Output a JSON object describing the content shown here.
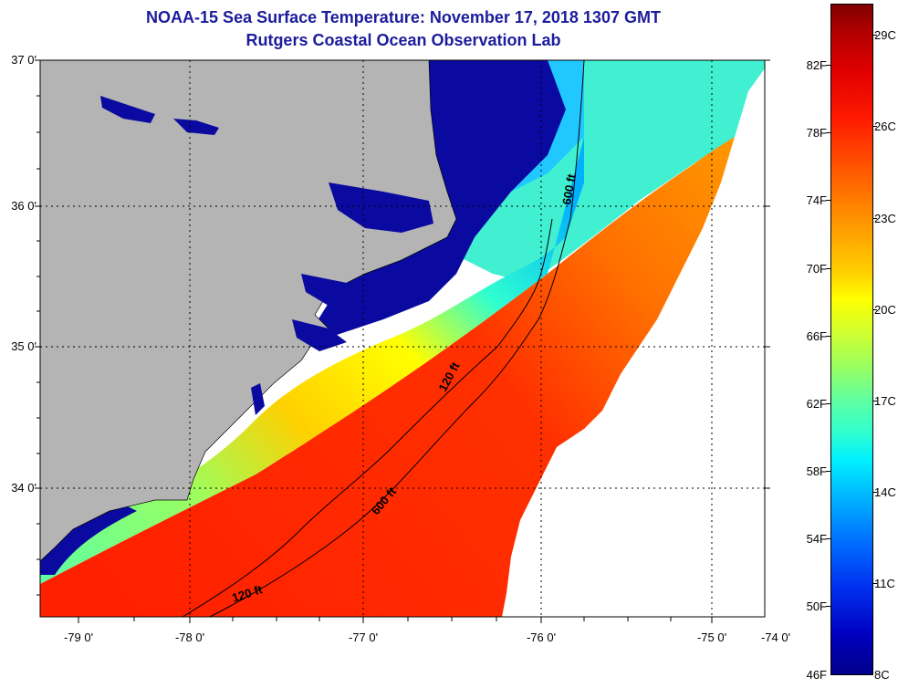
{
  "title": {
    "line1": "NOAA-15 Sea Surface Temperature:  November 17, 2018 1307 GMT",
    "line2": "Rutgers Coastal Ocean Observation Lab"
  },
  "map": {
    "lat_labels": [
      "37 0'",
      "36 0'",
      "35 0'",
      "34 0'"
    ],
    "lon_labels": [
      "-79 0'",
      "-78 0'",
      "-77 0'",
      "-76 0'",
      "-75 0'",
      "-74 0'"
    ],
    "contour_labels": [
      "600 ft",
      "120 ft",
      "600 ft",
      "120 ft"
    ],
    "colors": {
      "land": "#b4b4b4",
      "cold_water": "#0a0aa0",
      "warm_water": "#ff1a00",
      "no_data": "#ffffff"
    }
  },
  "colorbar": {
    "fahrenheit": [
      "82F",
      "78F",
      "74F",
      "70F",
      "66F",
      "62F",
      "58F",
      "54F",
      "50F",
      "46F"
    ],
    "celsius": [
      "29C",
      "26C",
      "23C",
      "20C",
      "17C",
      "14C",
      "11C",
      "8C"
    ]
  }
}
